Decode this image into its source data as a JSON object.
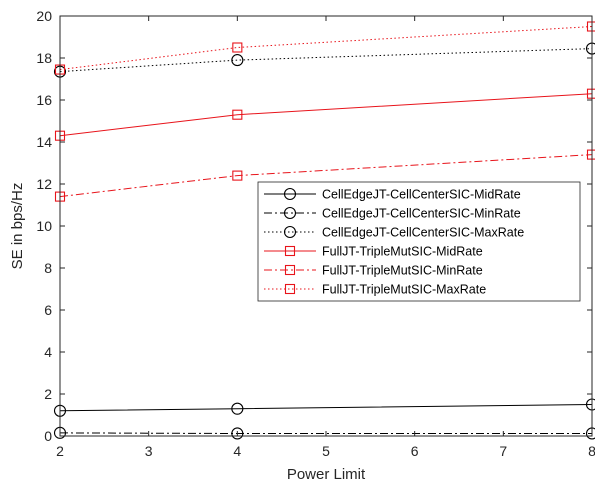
{
  "chart_data": {
    "type": "line",
    "xlabel": "Power Limit",
    "ylabel": "SE in bps/Hz",
    "xlim": [
      2,
      8
    ],
    "ylim": [
      0,
      20
    ],
    "xticks": [
      "2",
      "3",
      "4",
      "5",
      "6",
      "7",
      "8"
    ],
    "yticks": [
      "0",
      "2",
      "4",
      "6",
      "8",
      "10",
      "12",
      "14",
      "16",
      "18",
      "20"
    ],
    "grid": false,
    "legend_position": "center-right",
    "x": [
      2,
      4,
      8
    ],
    "series": [
      {
        "name": "CellEdgeJT-CellCenterSIC-MidRate",
        "values": [
          1.2,
          1.3,
          1.5
        ],
        "color": "#000000",
        "line_style": "solid",
        "marker": "circle"
      },
      {
        "name": "CellEdgeJT-CellCenterSIC-MinRate",
        "values": [
          0.15,
          0.12,
          0.12
        ],
        "color": "#000000",
        "line_style": "dashdot",
        "marker": "circle"
      },
      {
        "name": "CellEdgeJT-CellCenterSIC-MaxRate",
        "values": [
          17.35,
          17.9,
          18.45
        ],
        "color": "#000000",
        "line_style": "dotted",
        "marker": "circle"
      },
      {
        "name": "FullJT-TripleMutSIC-MidRate",
        "values": [
          14.3,
          15.3,
          16.3
        ],
        "color": "#e8141b",
        "line_style": "solid",
        "marker": "square"
      },
      {
        "name": "FullJT-TripleMutSIC-MinRate",
        "values": [
          11.4,
          12.4,
          13.4
        ],
        "color": "#e8141b",
        "line_style": "dashdot",
        "marker": "square"
      },
      {
        "name": "FullJT-TripleMutSIC-MaxRate",
        "values": [
          17.45,
          18.5,
          19.5
        ],
        "color": "#e8141b",
        "line_style": "dotted",
        "marker": "square"
      }
    ]
  }
}
